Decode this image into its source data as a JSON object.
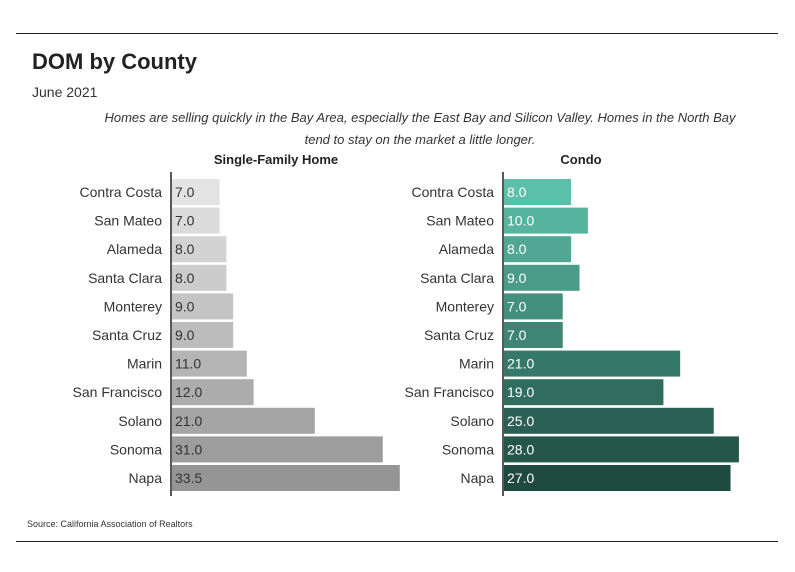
{
  "title": "DOM by County",
  "subtitle": "June 2021",
  "description": "Homes are selling quickly in the Bay Area, especially the East Bay and Silicon Valley. Homes in the North Bay tend to stay on the market a little longer.",
  "source": "Source:  California Association of Realtors",
  "chart_data": [
    {
      "type": "bar",
      "orientation": "horizontal",
      "title": "Single-Family Home",
      "categories": [
        "Contra Costa",
        "San Mateo",
        "Alameda",
        "Santa Clara",
        "Monterey",
        "Santa Cruz",
        "Marin",
        "San Francisco",
        "Solano",
        "Sonoma",
        "Napa"
      ],
      "values": [
        7.0,
        7.0,
        8.0,
        8.0,
        9.0,
        9.0,
        11.0,
        12.0,
        21.0,
        31.0,
        33.5
      ],
      "value_labels": [
        "7.0",
        "7.0",
        "8.0",
        "8.0",
        "9.0",
        "9.0",
        "11.0",
        "12.0",
        "21.0",
        "31.0",
        "33.5"
      ],
      "color_range": [
        "#e3e3e3",
        "#959595"
      ]
    },
    {
      "type": "bar",
      "orientation": "horizontal",
      "title": "Condo",
      "categories": [
        "Contra Costa",
        "San Mateo",
        "Alameda",
        "Santa Clara",
        "Monterey",
        "Santa Cruz",
        "Marin",
        "San Francisco",
        "Solano",
        "Sonoma",
        "Napa"
      ],
      "values": [
        8.0,
        10.0,
        8.0,
        9.0,
        7.0,
        7.0,
        21.0,
        19.0,
        25.0,
        28.0,
        27.0
      ],
      "value_labels": [
        "8.0",
        "10.0",
        "8.0",
        "9.0",
        "7.0",
        "7.0",
        "21.0",
        "19.0",
        "25.0",
        "28.0",
        "27.0"
      ],
      "color_range": [
        "#5cbfa9",
        "#1f4a3f"
      ]
    }
  ]
}
